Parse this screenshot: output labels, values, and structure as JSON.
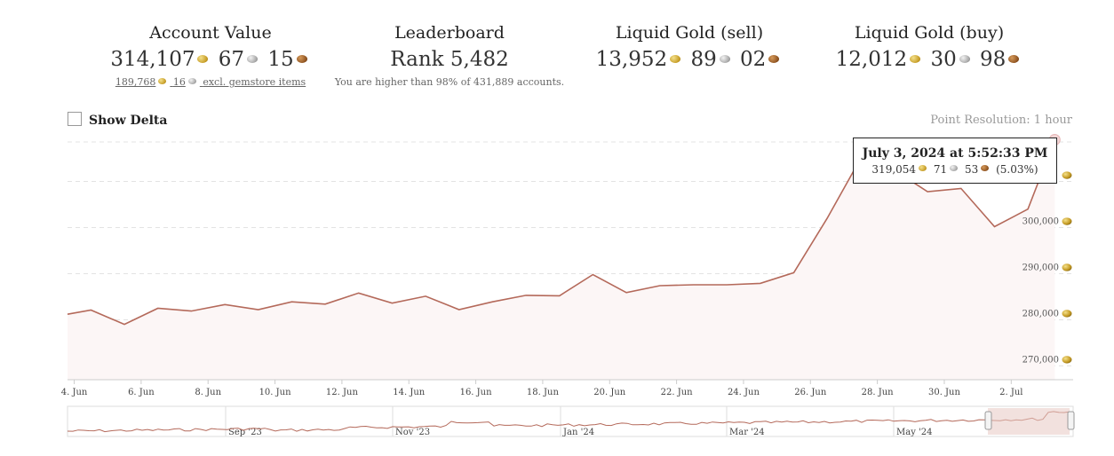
{
  "stats": {
    "account_value": {
      "title": "Account Value",
      "gold": "314,107",
      "silver": "67",
      "copper": "15",
      "sub_gold": "189,768",
      "sub_silver": "16",
      "sub_text": "excl. gemstore items"
    },
    "leaderboard": {
      "title": "Leaderboard",
      "value": "Rank 5,482",
      "sub_text": "You are higher than 98% of 431,889 accounts."
    },
    "liquid_sell": {
      "title": "Liquid Gold (sell)",
      "gold": "13,952",
      "silver": "89",
      "copper": "02"
    },
    "liquid_buy": {
      "title": "Liquid Gold (buy)",
      "gold": "12,012",
      "silver": "30",
      "copper": "98"
    }
  },
  "controls": {
    "show_delta_label": "Show Delta",
    "point_resolution": "Point Resolution: 1 hour"
  },
  "tooltip": {
    "date": "July 3, 2024 at 5:52:33 PM",
    "gold": "319,054",
    "silver": "71",
    "copper": "53",
    "pct": "(5.03%)"
  },
  "colors": {
    "line": "#b4695a",
    "fill": "#fcf6f6",
    "grid": "#e3e3e3",
    "navigator_mask": "#e8c8c3"
  },
  "chart_data": {
    "type": "area",
    "title": "Account Value",
    "xlabel": "",
    "ylabel": "",
    "ylim": [
      267000,
      320500
    ],
    "y_ticks": [
      270000,
      280000,
      290000,
      300000,
      310000
    ],
    "y_tick_labels": [
      "270,000",
      "280,000",
      "290,000",
      "300,000",
      ""
    ],
    "x_ticks": [
      "4. Jun",
      "6. Jun",
      "8. Jun",
      "10. Jun",
      "12. Jun",
      "14. Jun",
      "16. Jun",
      "18. Jun",
      "20. Jun",
      "22. Jun",
      "24. Jun",
      "26. Jun",
      "28. Jun",
      "30. Jun",
      "2. Jul"
    ],
    "x_tick_days": [
      4,
      6,
      8,
      10,
      12,
      14,
      16,
      18,
      20,
      22,
      24,
      26,
      28,
      30,
      32
    ],
    "x_range_days": [
      3.8,
      33.85
    ],
    "series": [
      {
        "name": "Account Value",
        "x_days": [
          3.8,
          4.5,
          5.5,
          6.5,
          7.5,
          8.5,
          9.5,
          10.5,
          11.5,
          12.5,
          13.5,
          14.5,
          15.5,
          16.5,
          17.5,
          18.5,
          19.5,
          20.5,
          21.5,
          22.5,
          23.5,
          24.5,
          25.5,
          26.5,
          27.5,
          28.5,
          29.5,
          30.5,
          31.5,
          32.5,
          33.3
        ],
        "values": [
          281200,
          282100,
          279000,
          282500,
          281900,
          283300,
          282200,
          283900,
          283400,
          285800,
          283600,
          285100,
          282200,
          283900,
          285300,
          285200,
          289800,
          285900,
          287400,
          287600,
          287600,
          287900,
          290200,
          302000,
          315000,
          312500,
          307800,
          308500,
          300200,
          304000,
          319054
        ]
      }
    ],
    "navigator": {
      "labels": [
        "Sep '23",
        "Nov '23",
        "Jan '24",
        "Mar '24",
        "May '24"
      ]
    }
  }
}
